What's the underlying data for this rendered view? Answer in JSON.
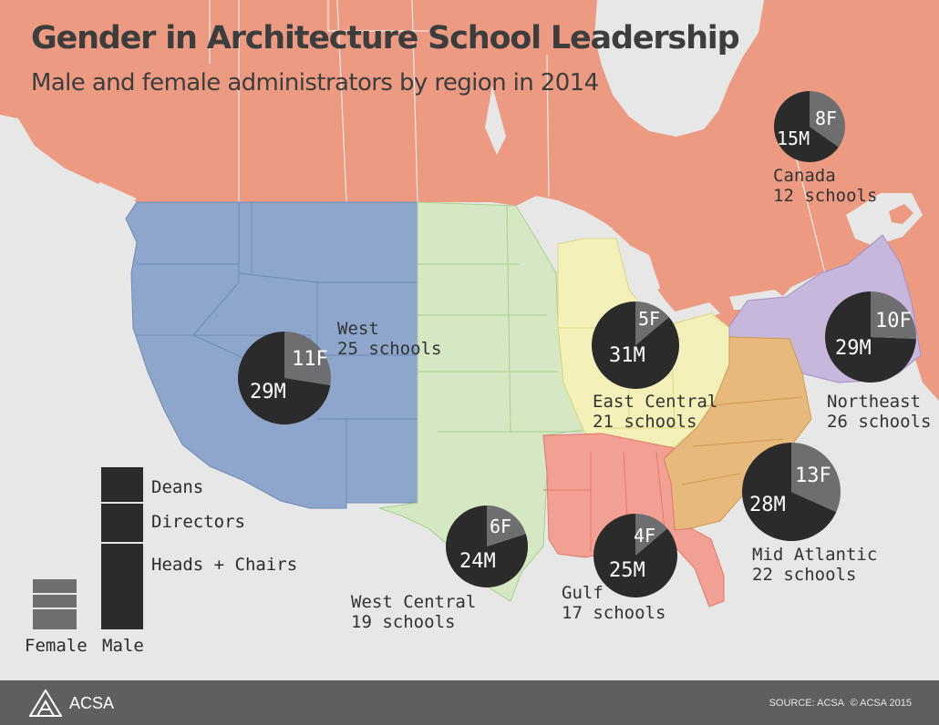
{
  "header": {
    "title": "Gender in Architecture School Leadership",
    "subtitle": "Male and female administrators by region in 2014"
  },
  "colors": {
    "canada": "#ec9a82",
    "west": "#8ea6cb",
    "west_central": "#d5e8c3",
    "east_central": "#f4f0b9",
    "gulf": "#f2a093",
    "mid_atlantic": "#e8b97c",
    "northeast": "#c7b7dc",
    "male": "#2b2b2b",
    "female": "#6e6e70",
    "background": "#e6e7e6"
  },
  "regions": [
    {
      "name": "Canada",
      "schools": "12 schools",
      "male": 15,
      "female": 8,
      "male_label": "15M",
      "female_label": "8F",
      "color": "canada"
    },
    {
      "name": "West",
      "schools": "25 schools",
      "male": 29,
      "female": 11,
      "male_label": "29M",
      "female_label": "11F",
      "color": "west"
    },
    {
      "name": "East Central",
      "schools": "21 schools",
      "male": 31,
      "female": 5,
      "male_label": "31M",
      "female_label": "5F",
      "color": "east_central"
    },
    {
      "name": "Northeast",
      "schools": "26 schools",
      "male": 29,
      "female": 10,
      "male_label": "29M",
      "female_label": "10F",
      "color": "northeast"
    },
    {
      "name": "Mid Atlantic",
      "schools": "22 schools",
      "male": 28,
      "female": 13,
      "male_label": "28M",
      "female_label": "13F",
      "color": "mid_atlantic"
    },
    {
      "name": "West Central",
      "schools": "19 schools",
      "male": 24,
      "female": 6,
      "male_label": "24M",
      "female_label": "6F",
      "color": "west_central"
    },
    {
      "name": "Gulf",
      "schools": "17 schools",
      "male": 25,
      "female": 4,
      "male_label": "25M",
      "female_label": "4F",
      "color": "gulf"
    }
  ],
  "legend": {
    "items": [
      "Deans",
      "Directors",
      "Heads + Chairs"
    ],
    "female_label": "Female",
    "male_label": "Male"
  },
  "footer": {
    "logo_text": "ACSA",
    "source": "SOURCE: ACSA",
    "copyright": "© ACSA 2015"
  }
}
